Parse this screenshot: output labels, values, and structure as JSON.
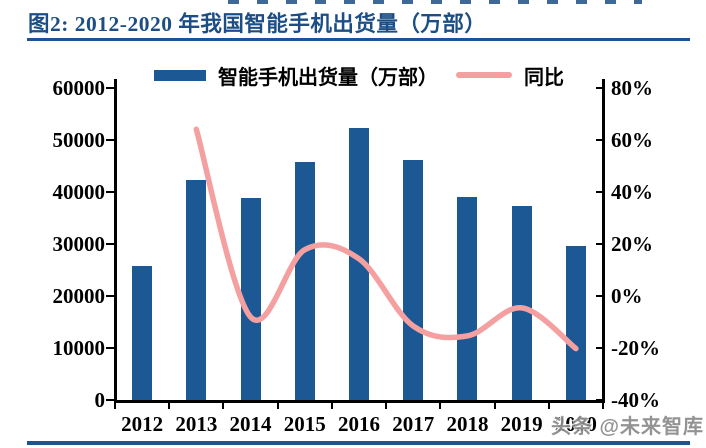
{
  "figure": {
    "title": "图2: 2012-2020 年我国智能手机出货量（万部）"
  },
  "watermark": {
    "text": "头条 @未来智库"
  },
  "chart_data": {
    "type": "bar",
    "title": "图2: 2012-2020 年我国智能手机出货量（万部）",
    "categories": [
      "2012",
      "2013",
      "2014",
      "2015",
      "2016",
      "2017",
      "2018",
      "2019",
      "2020"
    ],
    "series": [
      {
        "name": "智能手机出货量（万部）",
        "type": "bar",
        "axis": "left",
        "values": [
          25800,
          42300,
          38900,
          45700,
          52200,
          46100,
          39000,
          37200,
          29600
        ]
      },
      {
        "name": "同比",
        "type": "line",
        "axis": "right",
        "values": [
          null,
          64.1,
          -8.2,
          17.7,
          14.2,
          -11.7,
          -15.5,
          -4.7,
          -20.4
        ]
      }
    ],
    "legend": [
      "智能手机出货量（万部）",
      "同比"
    ],
    "legend_position": "top-center",
    "grid": false,
    "left_axis": {
      "min": 0,
      "max": 60000,
      "step": 10000,
      "tick_labels": [
        "0",
        "10000",
        "20000",
        "30000",
        "40000",
        "50000",
        "60000"
      ]
    },
    "right_axis": {
      "min": -40,
      "max": 80,
      "step": 20,
      "tick_labels": [
        "-40%",
        "-20%",
        "0%",
        "20%",
        "40%",
        "60%",
        "80%"
      ]
    },
    "colors": {
      "bar": "#1B5894",
      "line": "#F4A0A0",
      "accent": "#1C4E85"
    }
  }
}
